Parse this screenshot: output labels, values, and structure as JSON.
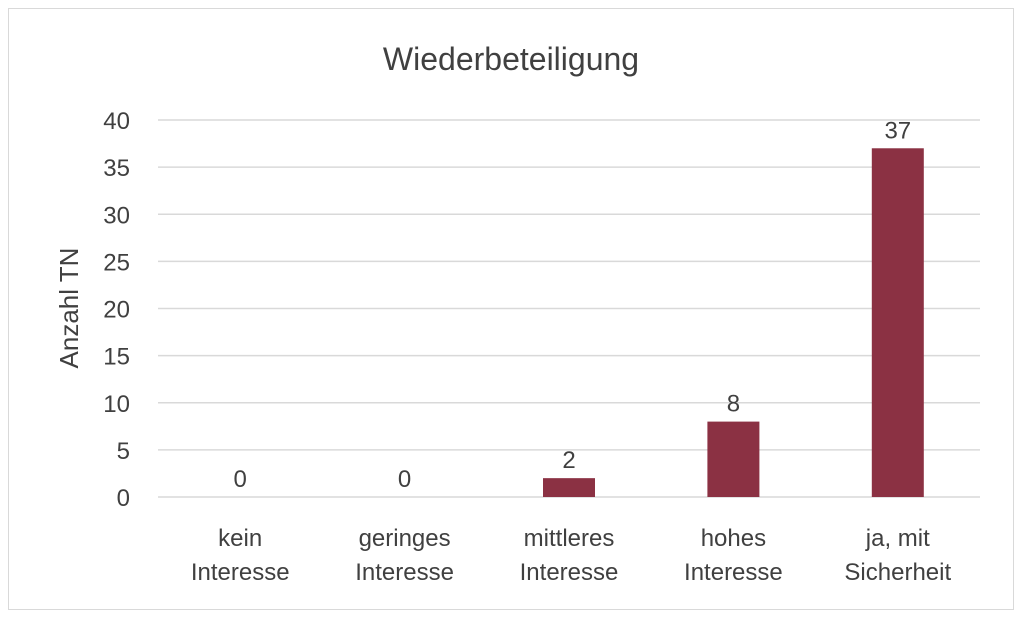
{
  "chart_data": {
    "type": "bar",
    "title": "Wiederbeteiligung",
    "xlabel": "",
    "ylabel": "Anzahl TN",
    "ylim": [
      0,
      40
    ],
    "yticks": [
      0,
      5,
      10,
      15,
      20,
      25,
      30,
      35,
      40
    ],
    "grid": true,
    "categories": [
      [
        "kein",
        "Interesse"
      ],
      [
        "geringes",
        "Interesse"
      ],
      [
        "mittleres",
        "Interesse"
      ],
      [
        "hohes",
        "Interesse"
      ],
      [
        "ja, mit",
        "Sicherheit"
      ]
    ],
    "values": [
      0,
      0,
      2,
      8,
      37
    ],
    "data_labels": [
      "0",
      "0",
      "2",
      "8",
      "37"
    ],
    "bar_color": "#8b3143"
  }
}
